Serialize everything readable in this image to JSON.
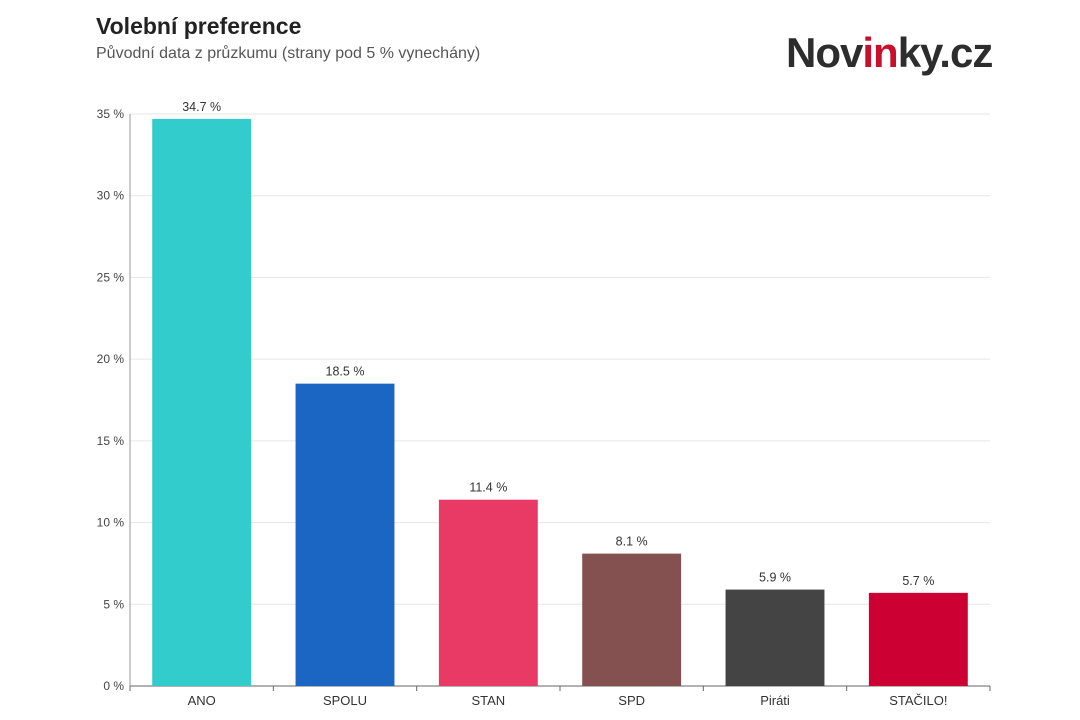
{
  "header": {
    "title": "Volební preference",
    "subtitle": "Původní data z průzkumu (strany pod 5 % vynechány)"
  },
  "logo": {
    "text_before": "Nov",
    "text_accent": "in",
    "text_after": "ky.cz",
    "accent_color": "#c8102e"
  },
  "chart_data": {
    "type": "bar",
    "categories": [
      "ANO",
      "SPOLU",
      "STAN",
      "SPD",
      "Piráti",
      "STAČILO!"
    ],
    "values": [
      34.7,
      18.5,
      11.4,
      8.1,
      5.9,
      5.7
    ],
    "value_labels": [
      "34.7 %",
      "18.5 %",
      "11.4 %",
      "8.1 %",
      "5.9 %",
      "5.7 %"
    ],
    "colors": [
      "#33cccc",
      "#1a66c2",
      "#e83a65",
      "#855050",
      "#444444",
      "#cc0033"
    ],
    "ylim": [
      0,
      35
    ],
    "yticks": [
      0,
      5,
      10,
      15,
      20,
      25,
      30,
      35
    ],
    "ytick_labels": [
      "0 %",
      "5 %",
      "10 %",
      "15 %",
      "20 %",
      "25 %",
      "30 %",
      "35 %"
    ],
    "grid": true,
    "title": "Volební preference",
    "xlabel": "",
    "ylabel": ""
  }
}
